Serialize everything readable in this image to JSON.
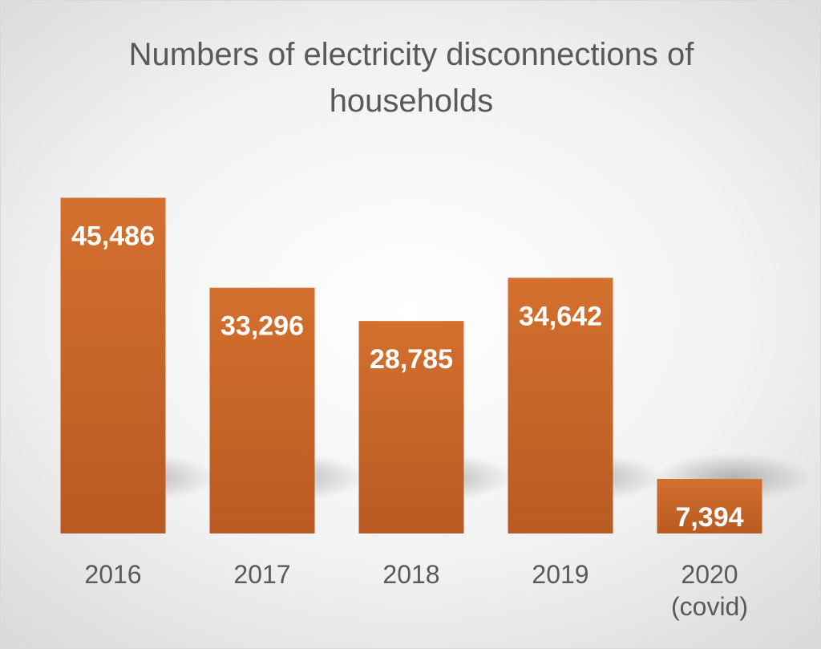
{
  "chart_data": {
    "type": "bar",
    "title": "Numbers of electricity disconnections of households",
    "categories": [
      "2016",
      "2017",
      "2018",
      "2019",
      "2020 (covid)"
    ],
    "values": [
      45486,
      33296,
      28785,
      34642,
      7394
    ],
    "data_labels": [
      "45,486",
      "33,296",
      "28,785",
      "34,642",
      "7,394"
    ],
    "xlabel": "",
    "ylabel": "",
    "ylim": [
      0,
      50000
    ],
    "grid": false,
    "legend": "none",
    "bar_color": "#c55a11",
    "bar_gradient": [
      "#d4702f",
      "#b85a22"
    ]
  }
}
